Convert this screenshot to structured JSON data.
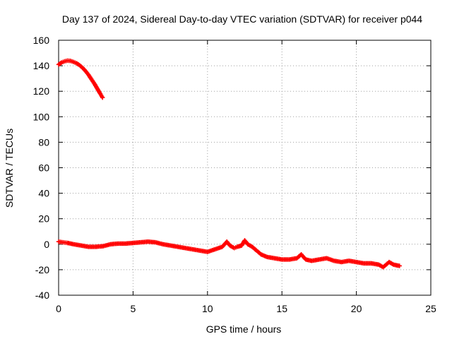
{
  "chart_data": {
    "type": "scatter",
    "title": "Day 137 of 2024, Sidereal Day-to-day VTEC variation (SDTVAR) for receiver p044",
    "xlabel": "GPS time / hours",
    "ylabel": "SDTVAR / TECUs",
    "xlim": [
      0,
      25
    ],
    "ylim": [
      -40,
      160
    ],
    "xticks": [
      0,
      5,
      10,
      15,
      20,
      25
    ],
    "yticks": [
      -40,
      -20,
      0,
      20,
      40,
      60,
      80,
      100,
      120,
      140,
      160
    ],
    "grid": true,
    "marker": "plus",
    "series_color": "#ff0000",
    "series": [
      {
        "name": "segment-1",
        "x": [
          0.0,
          0.2,
          0.4,
          0.6,
          0.8,
          1.0,
          1.2,
          1.4,
          1.6,
          1.8,
          2.0,
          2.2,
          2.4,
          2.6,
          2.8,
          2.95
        ],
        "y": [
          141,
          142.5,
          143.5,
          144,
          143.8,
          143,
          142,
          140.5,
          138.5,
          136,
          133,
          129.5,
          126,
          122,
          118,
          115
        ]
      },
      {
        "name": "segment-2",
        "x": [
          0.0,
          0.3,
          0.6,
          1.0,
          1.5,
          2.0,
          2.5,
          3.0,
          3.5,
          4.0,
          4.5,
          5.0,
          5.5,
          6.0,
          6.5,
          7.0,
          7.5,
          8.0,
          8.5,
          9.0,
          9.5,
          10.0,
          10.5,
          11.0,
          11.3,
          11.5,
          11.8,
          12.0,
          12.3,
          12.5,
          12.7,
          13.0,
          13.3,
          13.6,
          14.0,
          14.5,
          15.0,
          15.5,
          16.0,
          16.3,
          16.6,
          17.0,
          17.5,
          18.0,
          18.5,
          19.0,
          19.5,
          20.0,
          20.5,
          21.0,
          21.5,
          21.8,
          22.2,
          22.5,
          22.9
        ],
        "y": [
          2,
          1.5,
          1,
          0,
          -1,
          -2,
          -2,
          -1.5,
          0,
          0.5,
          0.5,
          1,
          1.5,
          2,
          1.5,
          0,
          -1,
          -2,
          -3,
          -4,
          -5,
          -6,
          -4,
          -2,
          2,
          -1,
          -3,
          -2,
          -1,
          3,
          0,
          -2,
          -5,
          -8,
          -10,
          -11,
          -12,
          -12,
          -11,
          -8,
          -12,
          -13,
          -12,
          -11,
          -13,
          -14,
          -13,
          -14,
          -15,
          -15,
          -16,
          -18,
          -14,
          -16,
          -17
        ]
      }
    ]
  }
}
